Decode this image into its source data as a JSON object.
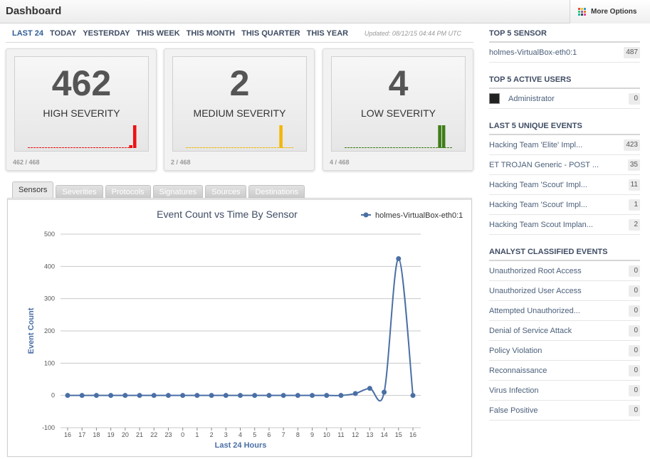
{
  "header": {
    "title": "Dashboard",
    "more_options": "More Options"
  },
  "time_ranges": [
    "LAST 24",
    "TODAY",
    "YESTERDAY",
    "THIS WEEK",
    "THIS MONTH",
    "THIS QUARTER",
    "THIS YEAR"
  ],
  "updated": "Updated: 08/12/15 04:44 PM UTC",
  "severity_cards": [
    {
      "count": "462",
      "label": "HIGH SEVERITY",
      "ratio": "462 / 468",
      "color": "#ee1111",
      "spike_slots": [
        27
      ],
      "small_slots": [
        26
      ]
    },
    {
      "count": "2",
      "label": "MEDIUM SEVERITY",
      "ratio": "2 / 468",
      "color": "#f2b705",
      "spike_slots": [
        24
      ],
      "small_slots": []
    },
    {
      "count": "4",
      "label": "LOW SEVERITY",
      "ratio": "4 / 468",
      "color": "#3f7d18",
      "spike_slots": [
        24,
        25
      ],
      "small_slots": []
    }
  ],
  "tabs": [
    "Sensors",
    "Severities",
    "Protocols",
    "Signatures",
    "Sources",
    "Destinations"
  ],
  "chart_data": {
    "type": "line",
    "title": "Event Count vs Time By Sensor",
    "xlabel": "Last 24 Hours",
    "ylabel": "Event Count",
    "categories": [
      "16",
      "17",
      "18",
      "19",
      "20",
      "21",
      "22",
      "23",
      "0",
      "1",
      "2",
      "3",
      "4",
      "5",
      "6",
      "7",
      "8",
      "9",
      "10",
      "11",
      "12",
      "13",
      "14",
      "15",
      "16"
    ],
    "yticks": [
      "500",
      "400",
      "300",
      "200",
      "100",
      "0",
      "-100"
    ],
    "ylim": [
      -100,
      500
    ],
    "grid": true,
    "legend_position": "top-right",
    "series": [
      {
        "name": "holmes-VirtualBox-eth0:1",
        "color": "#4a6fa5",
        "values": [
          0,
          0,
          0,
          0,
          0,
          0,
          0,
          0,
          0,
          0,
          0,
          0,
          0,
          0,
          0,
          0,
          0,
          0,
          0,
          0,
          6,
          22,
          10,
          424,
          0
        ]
      }
    ]
  },
  "sidebar": {
    "top_sensor": {
      "title": "TOP 5 SENSOR",
      "items": [
        {
          "label": "holmes-VirtualBox-eth0:1",
          "count": "487"
        }
      ]
    },
    "top_users": {
      "title": "TOP 5 ACTIVE USERS",
      "items": [
        {
          "label": "Administrator",
          "count": "0"
        }
      ]
    },
    "unique_events": {
      "title": "LAST 5 UNIQUE EVENTS",
      "items": [
        {
          "label": "Hacking Team 'Elite' Impl...",
          "count": "423"
        },
        {
          "label": "ET TROJAN Generic - POST ...",
          "count": "35"
        },
        {
          "label": "Hacking Team 'Scout' Impl...",
          "count": "11"
        },
        {
          "label": "Hacking Team 'Scout' Impl...",
          "count": "1"
        },
        {
          "label": "Hacking Team Scout Implan...",
          "count": "2"
        }
      ]
    },
    "analyst_events": {
      "title": "ANALYST CLASSIFIED EVENTS",
      "items": [
        {
          "label": "Unauthorized Root Access",
          "count": "0"
        },
        {
          "label": "Unauthorized User Access",
          "count": "0"
        },
        {
          "label": "Attempted Unauthorized...",
          "count": "0"
        },
        {
          "label": "Denial of Service Attack",
          "count": "0"
        },
        {
          "label": "Policy Violation",
          "count": "0"
        },
        {
          "label": "Reconnaissance",
          "count": "0"
        },
        {
          "label": "Virus Infection",
          "count": "0"
        },
        {
          "label": "False Positive",
          "count": "0"
        }
      ]
    }
  }
}
